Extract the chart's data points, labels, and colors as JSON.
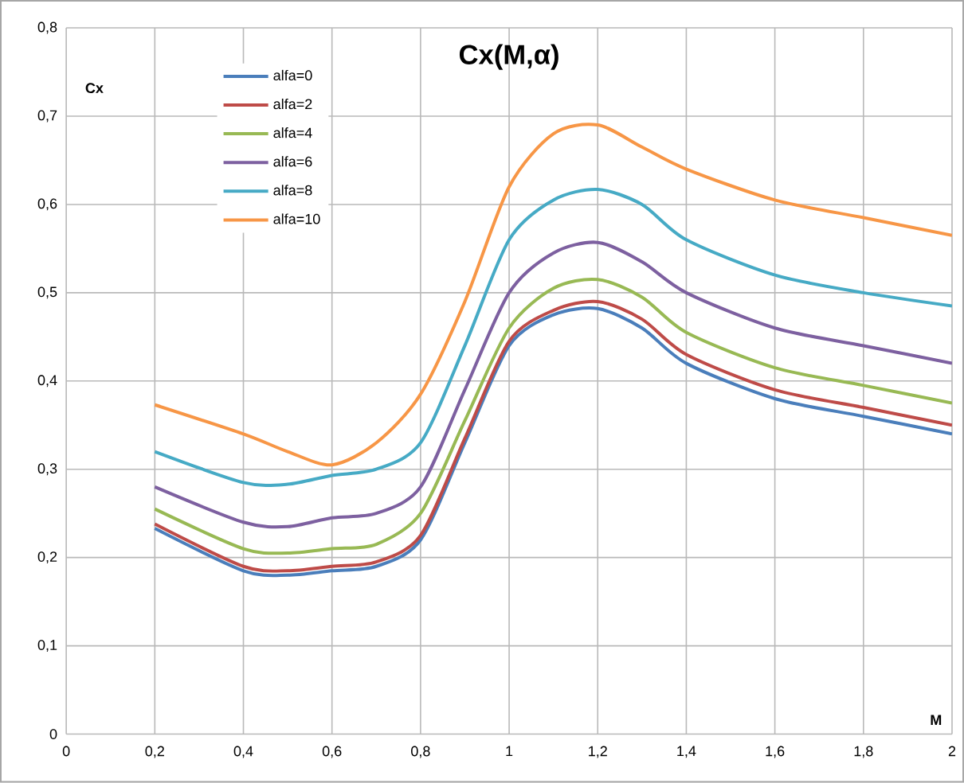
{
  "chart_data": {
    "type": "line",
    "title": "Cx(M,α)",
    "xlabel": "M",
    "ylabel": "Cx",
    "x": [
      0.2,
      0.4,
      0.5,
      0.6,
      0.7,
      0.8,
      0.9,
      1.0,
      1.1,
      1.2,
      1.3,
      1.4,
      1.6,
      1.8,
      2.0
    ],
    "series": [
      {
        "name": "alfa=0",
        "color": "#4a7ebb",
        "values": [
          0.233,
          0.185,
          0.18,
          0.185,
          0.19,
          0.22,
          0.33,
          0.44,
          0.475,
          0.482,
          0.46,
          0.42,
          0.38,
          0.36,
          0.34
        ]
      },
      {
        "name": "alfa=2",
        "color": "#be4b48",
        "values": [
          0.238,
          0.19,
          0.185,
          0.19,
          0.195,
          0.225,
          0.335,
          0.445,
          0.48,
          0.49,
          0.47,
          0.43,
          0.39,
          0.37,
          0.35
        ]
      },
      {
        "name": "alfa=4",
        "color": "#98b954",
        "values": [
          0.255,
          0.21,
          0.205,
          0.21,
          0.215,
          0.25,
          0.355,
          0.46,
          0.505,
          0.515,
          0.495,
          0.455,
          0.415,
          0.395,
          0.375
        ]
      },
      {
        "name": "alfa=6",
        "color": "#7d60a0",
        "values": [
          0.28,
          0.24,
          0.235,
          0.245,
          0.25,
          0.28,
          0.39,
          0.5,
          0.545,
          0.557,
          0.535,
          0.5,
          0.46,
          0.44,
          0.42
        ]
      },
      {
        "name": "alfa=8",
        "color": "#46aac5",
        "values": [
          0.32,
          0.285,
          0.283,
          0.293,
          0.3,
          0.33,
          0.44,
          0.56,
          0.605,
          0.617,
          0.6,
          0.56,
          0.52,
          0.5,
          0.485
        ]
      },
      {
        "name": "alfa=10",
        "color": "#f79646",
        "values": [
          0.373,
          0.34,
          0.32,
          0.305,
          0.33,
          0.385,
          0.49,
          0.62,
          0.68,
          0.69,
          0.665,
          0.64,
          0.605,
          0.585,
          0.565
        ]
      }
    ],
    "xlim": [
      0,
      2
    ],
    "ylim": [
      0,
      0.8
    ],
    "xticks": [
      0,
      {
        "value": 0.2,
        "label": "0,2"
      },
      {
        "value": 0.4,
        "label": "0,4"
      },
      {
        "value": 0.6,
        "label": "0,6"
      },
      {
        "value": 0.8,
        "label": "0,8"
      },
      1,
      {
        "value": 1.2,
        "label": "1,2"
      },
      {
        "value": 1.4,
        "label": "1,4"
      },
      {
        "value": 1.6,
        "label": "1,6"
      },
      {
        "value": 1.8,
        "label": "1,8"
      },
      2
    ],
    "yticks": [
      0,
      {
        "value": 0.1,
        "label": "0,1"
      },
      {
        "value": 0.2,
        "label": "0,2"
      },
      {
        "value": 0.3,
        "label": "0,3"
      },
      {
        "value": 0.4,
        "label": "0,4"
      },
      {
        "value": 0.5,
        "label": "0,5"
      },
      {
        "value": 0.6,
        "label": "0,6"
      },
      {
        "value": 0.7,
        "label": "0,7"
      },
      {
        "value": 0.8,
        "label": "0,8"
      }
    ],
    "grid": true,
    "legend": "top left",
    "marker": "none",
    "line_style": "solid"
  }
}
